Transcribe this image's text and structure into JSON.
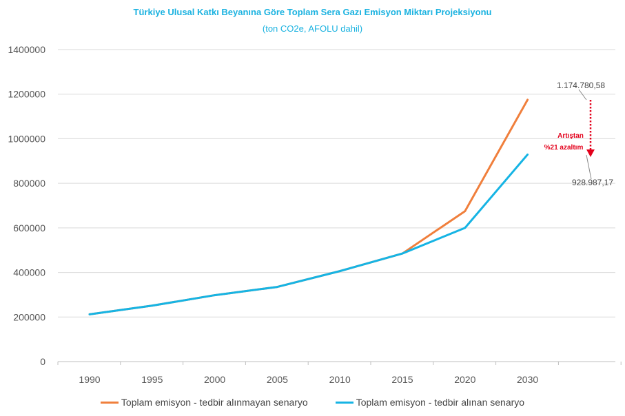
{
  "chart_data": {
    "type": "line",
    "title": "Türkiye Ulusal Katkı Beyanına Göre Toplam Sera Gazı Emisyon Miktarı Projeksiyonu",
    "subtitle": "(ton CO2e, AFOLU dahil)",
    "categories": [
      "1990",
      "1995",
      "2000",
      "2005",
      "2010",
      "2015",
      "2020",
      "2030"
    ],
    "ylim": [
      0,
      1400000
    ],
    "yticks": [
      "0",
      "200000",
      "400000",
      "600000",
      "800000",
      "1000000",
      "1200000",
      "1400000"
    ],
    "grid": true,
    "legend_position": "bottom",
    "series": [
      {
        "name": "Toplam emisyon - tedbir alınmayan senaryo",
        "color": "#f07f3c",
        "values": [
          212000,
          251000,
          298000,
          335000,
          406000,
          485000,
          675000,
          1174780.58
        ]
      },
      {
        "name": "Toplam emisyon - tedbir alınan senaryo",
        "color": "#16b4e4",
        "values": [
          212000,
          251000,
          298000,
          335000,
          406000,
          485000,
          600000,
          928987.17
        ]
      }
    ],
    "annotations": {
      "top_value": "1.174.780,58",
      "bottom_value": "928.987,17",
      "reduction_line1": "Artıştan",
      "reduction_line2": "%21 azaltım",
      "reduction_color": "#e3001b"
    }
  }
}
